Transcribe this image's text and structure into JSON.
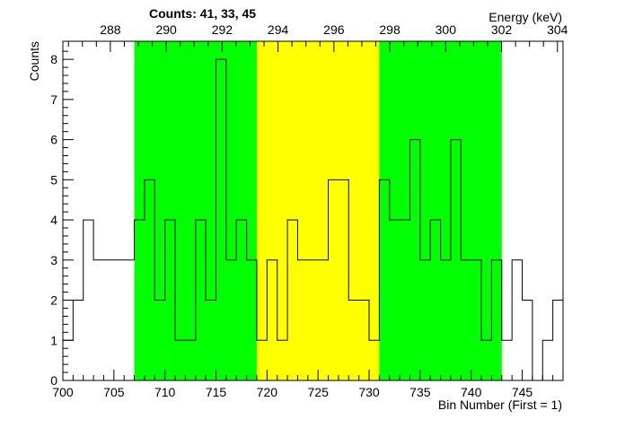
{
  "chart_data": {
    "type": "histogram",
    "title": "Counts:   41,   33,   45",
    "xlabel": "Bin Number (First = 1)",
    "ylabel": "Counts",
    "top_axis_label": "Energy (keV)",
    "xlim": [
      700,
      749
    ],
    "ylim": [
      0,
      8.45
    ],
    "x_ticks": [
      700,
      705,
      710,
      715,
      720,
      725,
      730,
      735,
      740,
      745
    ],
    "y_ticks": [
      0,
      1,
      2,
      3,
      4,
      5,
      6,
      7,
      8
    ],
    "top_axis": {
      "energy_at_xlim": [
        286.3,
        304.2
      ],
      "ticks": [
        288,
        290,
        292,
        294,
        296,
        298,
        300,
        302,
        304
      ]
    },
    "regions": [
      {
        "x0": 707,
        "x1": 719,
        "color": "#00ff00",
        "counts": 41
      },
      {
        "x0": 719,
        "x1": 731,
        "color": "#ffff00",
        "counts": 33
      },
      {
        "x0": 731,
        "x1": 743,
        "color": "#00ff00",
        "counts": 45
      }
    ],
    "bin_start": 700,
    "bin_width": 1,
    "values": [
      1,
      2,
      4,
      3,
      3,
      3,
      3,
      4,
      5,
      2,
      4,
      1,
      1,
      4,
      2,
      8,
      3,
      4,
      3,
      1,
      3,
      1,
      4,
      3,
      3,
      3,
      5,
      5,
      2,
      2,
      1,
      5,
      4,
      4,
      6,
      3,
      4,
      3,
      6,
      3,
      3,
      1,
      3,
      1,
      3,
      2,
      0,
      1,
      2
    ],
    "grid": false,
    "colors": {
      "line": "#000000",
      "background": "#ffffff"
    }
  }
}
